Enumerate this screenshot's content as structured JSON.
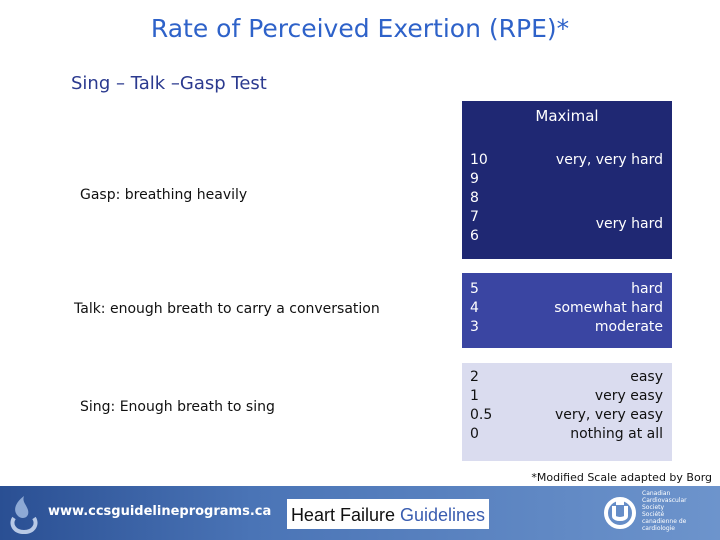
{
  "title": "Rate of Perceived Exertion (RPE)*",
  "subtitle": "Sing – Talk –Gasp Test",
  "levels": [
    {
      "label": "Gasp: breathing heavily"
    },
    {
      "label": "Talk: enough breath to carry a conversation"
    },
    {
      "label": "Sing: Enough breath to sing"
    }
  ],
  "scale": {
    "maximal_label": "Maximal",
    "high": {
      "numbers": [
        "10",
        "9",
        "8",
        "7",
        "6"
      ],
      "desc_top": "very, very hard",
      "desc_bottom": "very hard"
    },
    "mid": {
      "numbers": [
        "5",
        "4",
        "3"
      ],
      "descs": [
        "hard",
        "somewhat hard",
        "moderate"
      ]
    },
    "low": {
      "numbers": [
        "2",
        "1",
        "0.5",
        "0"
      ],
      "descs": [
        "easy",
        "very easy",
        "very, very easy",
        "nothing at all"
      ]
    }
  },
  "footnote": "*Modified Scale adapted by Borg",
  "footer": {
    "url": "www.ccsguidelineprograms.ca",
    "title_part1": "Heart Failure ",
    "title_part2": "Guidelines",
    "society_lines": [
      "Canadian",
      "Cardiovascular",
      "Society",
      "Société",
      "canadienne de",
      "cardiologie"
    ]
  },
  "colors": {
    "title": "#2e62c9",
    "panel_max": "#1f2873",
    "panel_mid": "#3a45a2",
    "panel_low": "#dadcef",
    "footer": "#4a74b6"
  }
}
